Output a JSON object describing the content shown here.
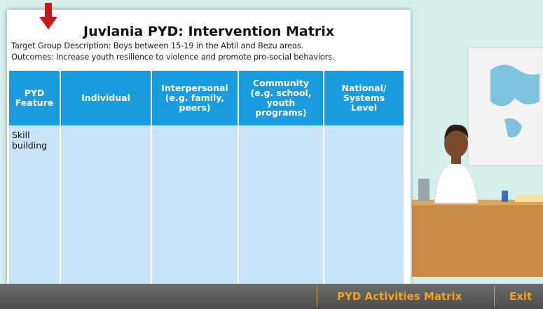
{
  "card": {
    "title": "Juvlania PYD: Intervention Matrix",
    "lines": [
      "Target Group Description: Boys between 15-19 in the Abtil and Bezu areas.",
      "Outcomes: Increase youth resilience to violence and promote pro-social behaviors."
    ]
  },
  "table": {
    "header": [
      "PYD Feature",
      "Individual",
      "Interpersonal (e.g. family, peers)",
      "Community (e.g. school, youth programs)",
      "National/ Systems Level"
    ],
    "rows": [
      [
        "Skill building"
      ]
    ]
  },
  "nav": [
    "PYD Activities Matrix",
    "Exit"
  ]
}
